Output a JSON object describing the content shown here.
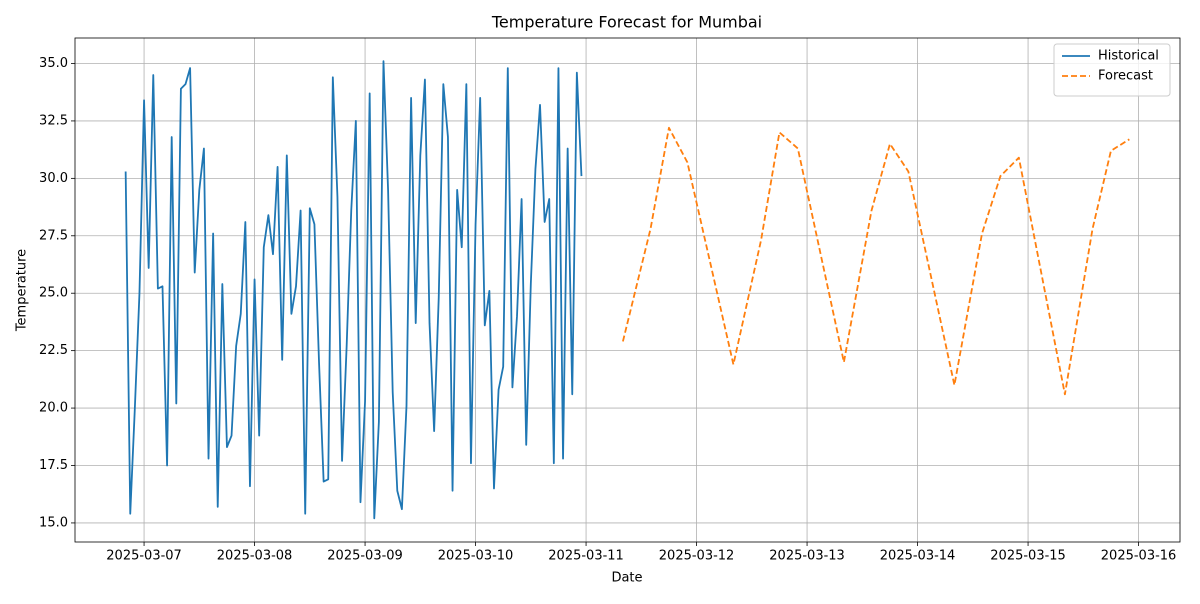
{
  "chart_data": {
    "type": "line",
    "title": "Temperature Forecast for Mumbai",
    "xlabel": "Date",
    "ylabel": "Temperature",
    "xlim": [
      "2025-03-06T09:00",
      "2025-03-16T09:00"
    ],
    "xticks": [
      "2025-03-07",
      "2025-03-08",
      "2025-03-09",
      "2025-03-10",
      "2025-03-11",
      "2025-03-12",
      "2025-03-13",
      "2025-03-14",
      "2025-03-15",
      "2025-03-16"
    ],
    "ylim": [
      14.17,
      36.11
    ],
    "yticks": [
      {
        "value": 15,
        "label": "15.0"
      },
      17.5,
      {
        "value": 20,
        "label": "20.0"
      },
      22.5,
      {
        "value": 25,
        "label": "25.0"
      },
      27.5,
      {
        "value": 30,
        "label": "30.0"
      },
      32.5,
      {
        "value": 35,
        "label": "35.0"
      }
    ],
    "grid": true,
    "legend": "upper right",
    "series": [
      {
        "name": "Historical",
        "color": "#1f77b4",
        "linestyle": "solid",
        "x": [
          "2025-03-06T20:00",
          "2025-03-06T21:00",
          "2025-03-06T22:00",
          "2025-03-06T23:00",
          "2025-03-07T00:00",
          "2025-03-07T01:00",
          "2025-03-07T02:00",
          "2025-03-07T03:00",
          "2025-03-07T04:00",
          "2025-03-07T05:00",
          "2025-03-07T06:00",
          "2025-03-07T07:00",
          "2025-03-07T08:00",
          "2025-03-07T09:00",
          "2025-03-07T10:00",
          "2025-03-07T11:00",
          "2025-03-07T12:00",
          "2025-03-07T13:00",
          "2025-03-07T14:00",
          "2025-03-07T15:00",
          "2025-03-07T16:00",
          "2025-03-07T17:00",
          "2025-03-07T18:00",
          "2025-03-07T19:00",
          "2025-03-07T20:00",
          "2025-03-07T21:00",
          "2025-03-07T22:00",
          "2025-03-07T23:00",
          "2025-03-08T00:00",
          "2025-03-08T01:00",
          "2025-03-08T02:00",
          "2025-03-08T03:00",
          "2025-03-08T04:00",
          "2025-03-08T05:00",
          "2025-03-08T06:00",
          "2025-03-08T07:00",
          "2025-03-08T08:00",
          "2025-03-08T09:00",
          "2025-03-08T10:00",
          "2025-03-08T11:00",
          "2025-03-08T12:00",
          "2025-03-08T13:00",
          "2025-03-08T14:00",
          "2025-03-08T15:00",
          "2025-03-08T16:00",
          "2025-03-08T17:00",
          "2025-03-08T18:00",
          "2025-03-08T19:00",
          "2025-03-08T20:00",
          "2025-03-08T21:00",
          "2025-03-08T22:00",
          "2025-03-08T23:00",
          "2025-03-09T00:00",
          "2025-03-09T01:00",
          "2025-03-09T02:00",
          "2025-03-09T03:00",
          "2025-03-09T04:00",
          "2025-03-09T05:00",
          "2025-03-09T06:00",
          "2025-03-09T07:00",
          "2025-03-09T08:00",
          "2025-03-09T09:00",
          "2025-03-09T10:00",
          "2025-03-09T11:00",
          "2025-03-09T12:00",
          "2025-03-09T13:00",
          "2025-03-09T14:00",
          "2025-03-09T15:00",
          "2025-03-09T16:00",
          "2025-03-09T17:00",
          "2025-03-09T18:00",
          "2025-03-09T19:00",
          "2025-03-09T20:00",
          "2025-03-09T21:00",
          "2025-03-09T22:00",
          "2025-03-09T23:00",
          "2025-03-10T00:00",
          "2025-03-10T01:00",
          "2025-03-10T02:00",
          "2025-03-10T03:00",
          "2025-03-10T04:00",
          "2025-03-10T05:00",
          "2025-03-10T06:00",
          "2025-03-10T07:00",
          "2025-03-10T08:00",
          "2025-03-10T09:00",
          "2025-03-10T10:00",
          "2025-03-10T11:00",
          "2025-03-10T12:00",
          "2025-03-10T13:00",
          "2025-03-10T14:00",
          "2025-03-10T15:00",
          "2025-03-10T16:00",
          "2025-03-10T17:00",
          "2025-03-10T18:00",
          "2025-03-10T19:00",
          "2025-03-10T20:00",
          "2025-03-10T21:00",
          "2025-03-10T22:00",
          "2025-03-10T23:00"
        ],
        "values": [
          30.3,
          15.4,
          20,
          25,
          33.4,
          26.1,
          34.5,
          25.2,
          25.3,
          17.5,
          31.8,
          20.2,
          33.9,
          34.1,
          34.8,
          25.9,
          29.5,
          31.3,
          17.8,
          27.6,
          15.7,
          25.4,
          18.3,
          18.8,
          22.7,
          24.1,
          28.1,
          16.6,
          25.6,
          18.8,
          27.0,
          28.4,
          26.7,
          30.5,
          22.1,
          31.0,
          24.1,
          25.3,
          28.6,
          15.4,
          28.7,
          28.0,
          22.0,
          16.8,
          16.9,
          34.4,
          29.2,
          17.7,
          22.7,
          28.6,
          32.5,
          15.9,
          20.3,
          33.7,
          15.2,
          19.4,
          35.1,
          29.5,
          20.7,
          16.4,
          15.6,
          20.1,
          33.5,
          23.7,
          31.0,
          34.3,
          23.7,
          19.0,
          24.8,
          34.1,
          31.8,
          16.4,
          29.5,
          27.0,
          34.1,
          17.6,
          28.0,
          33.5,
          23.6,
          25.1,
          16.5,
          20.8,
          21.8,
          34.8,
          20.9,
          24.0,
          29.1,
          18.4,
          25.4,
          30.4,
          33.2,
          28.1,
          29.1,
          17.6,
          34.8,
          17.8,
          31.3,
          20.6,
          34.6,
          30.1
        ]
      },
      {
        "name": "Forecast",
        "color": "#ff7f0e",
        "linestyle": "dashed",
        "x": [
          "2025-03-11T08:00",
          "2025-03-11T14:00",
          "2025-03-11T18:00",
          "2025-03-11T22:00",
          "2025-03-12T08:00",
          "2025-03-12T14:00",
          "2025-03-12T18:00",
          "2025-03-12T22:00",
          "2025-03-13T08:00",
          "2025-03-13T14:00",
          "2025-03-13T18:00",
          "2025-03-13T22:00",
          "2025-03-14T08:00",
          "2025-03-14T14:00",
          "2025-03-14T18:00",
          "2025-03-14T22:00",
          "2025-03-15T08:00",
          "2025-03-15T14:00",
          "2025-03-15T18:00",
          "2025-03-15T22:00"
        ],
        "values": [
          22.9,
          27.8,
          32.2,
          30.7,
          21.9,
          27.3,
          32.0,
          31.3,
          22.0,
          28.6,
          31.5,
          30.3,
          21.0,
          27.6,
          30.1,
          30.9,
          20.6,
          27.8,
          31.2,
          31.7
        ]
      }
    ]
  }
}
